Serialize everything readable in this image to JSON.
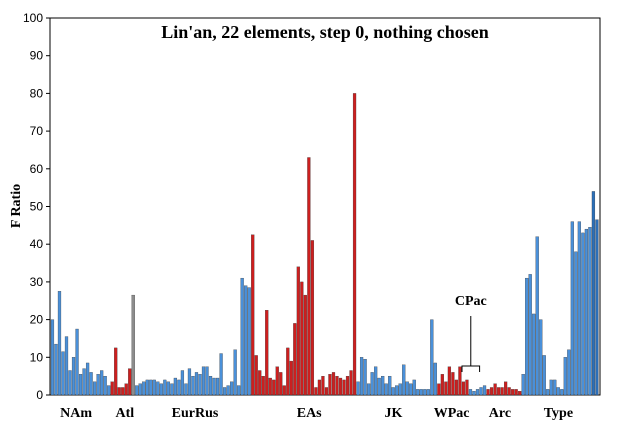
{
  "chart_data": {
    "type": "bar",
    "title": "Lin'an, 22 elements, step 0, nothing chosen",
    "ylabel": "F Ratio",
    "xlabel": "",
    "ylim": [
      0,
      100
    ],
    "yticks": [
      0,
      10,
      20,
      30,
      40,
      50,
      60,
      70,
      80,
      90,
      100
    ],
    "grid": false,
    "colors": {
      "default": "#4a90d9",
      "highlight": "#cc1f1f",
      "dark": "#2c6fb8",
      "gray": "#8c8c8c"
    },
    "groups": [
      {
        "label": "NAm",
        "values": [
          20,
          13.5,
          27.5,
          11.5,
          15.5,
          6.5,
          10,
          17.5,
          5.5,
          7,
          8.5,
          6,
          3.5,
          5.5,
          6.5,
          5,
          2.5
        ],
        "color": "default"
      },
      {
        "label": "Atl",
        "values": [
          3.5,
          12.5,
          2,
          2,
          3,
          7,
          26.5,
          2.5
        ],
        "color": "highlight",
        "overrides": {
          "6": "gray",
          "7": "default"
        }
      },
      {
        "label": "EurRus",
        "values": [
          3,
          3.5,
          4,
          4,
          4,
          3.5,
          3,
          4,
          3.5,
          3,
          4.5,
          4,
          6.5,
          3,
          7,
          5,
          6,
          5.5,
          7.5,
          7.5,
          5,
          4.5,
          4.5,
          11,
          2,
          2.5,
          3.5,
          12,
          2.5,
          31,
          29,
          28.5
        ],
        "color": "default"
      },
      {
        "label": "EAs",
        "values": [
          42.5,
          10.5,
          6.5,
          5,
          22.5,
          4.5,
          4,
          7.5,
          6,
          2.5,
          12.5,
          9,
          19,
          34,
          30,
          26.5,
          63,
          41,
          2,
          4,
          5,
          2,
          5.5,
          6,
          5,
          4.5,
          4,
          5,
          6.5,
          80
        ],
        "color": "highlight"
      },
      {
        "label": "JK",
        "values": [
          3.5,
          10,
          9.5,
          3,
          6,
          7.5,
          4.5,
          5,
          3,
          5,
          2,
          2.5,
          3,
          8,
          3.5,
          3,
          4,
          1.5,
          1.5,
          1.5,
          1.5
        ],
        "color": "default"
      },
      {
        "label": "WPac",
        "values": [
          20,
          8.5,
          3,
          5.5,
          3.5,
          7.5,
          6,
          4,
          7.5,
          3.5,
          4
        ],
        "color": "highlight",
        "overrides": {
          "0": "default",
          "1": "default"
        }
      },
      {
        "label": "Arc",
        "values": [
          1.5,
          1,
          1.5,
          2,
          2.5,
          1.5,
          2,
          3,
          2,
          2,
          3.5,
          2,
          1.5,
          1.5,
          1,
          5.5
        ],
        "color": "highlight",
        "overrides": {
          "0": "default",
          "1": "default",
          "2": "default",
          "3": "default",
          "4": "default",
          "15": "default"
        }
      },
      {
        "label": "Type",
        "values": [
          31,
          32,
          21.5,
          42,
          20,
          10.5,
          1.5,
          4,
          4,
          2,
          1.5,
          10,
          12,
          46,
          38,
          46,
          43,
          44,
          44.5,
          54,
          46.5
        ],
        "color": "default",
        "overrides": {
          "19": "dark",
          "20": "dark"
        }
      }
    ],
    "annotations": [
      {
        "text": "CPac"
      }
    ]
  }
}
